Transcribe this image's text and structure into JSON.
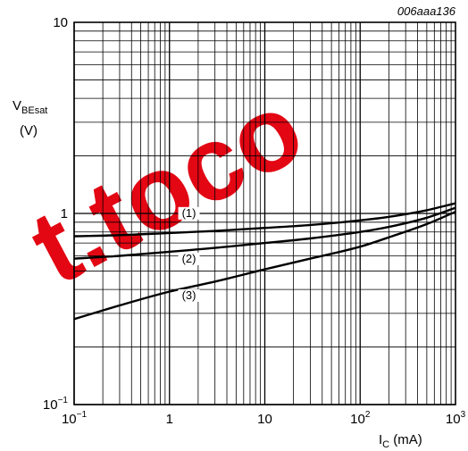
{
  "chart_data": {
    "type": "line",
    "code": "006aaa136",
    "ylabel_main": "V",
    "ylabel_sub": "BEsat",
    "ylabel_unit": "(V)",
    "xlabel_main": "I",
    "xlabel_sub": "C",
    "xlabel_unit": " (mA)",
    "x_scale": "log",
    "y_scale": "log",
    "xlim": [
      0.1,
      1000
    ],
    "ylim": [
      0.1,
      10
    ],
    "grid": true,
    "x_ticks": [
      {
        "value": 0.1,
        "base": "10",
        "exp": "−1"
      },
      {
        "value": 1,
        "base": "1",
        "exp": ""
      },
      {
        "value": 10,
        "base": "10",
        "exp": ""
      },
      {
        "value": 100,
        "base": "10",
        "exp": "2"
      },
      {
        "value": 1000,
        "base": "10",
        "exp": "3"
      }
    ],
    "y_ticks": [
      {
        "value": 0.1,
        "base": "10",
        "exp": "−1"
      },
      {
        "value": 1,
        "base": "1",
        "exp": ""
      },
      {
        "value": 10,
        "base": "10",
        "exp": ""
      }
    ],
    "series": [
      {
        "name": "(1)",
        "x": [
          0.1,
          0.3,
          1,
          3,
          10,
          30,
          100,
          200,
          500,
          1000
        ],
        "values": [
          0.76,
          0.77,
          0.79,
          0.81,
          0.84,
          0.87,
          0.92,
          0.96,
          1.04,
          1.13
        ]
      },
      {
        "name": "(2)",
        "x": [
          0.1,
          0.3,
          1,
          3,
          10,
          30,
          100,
          200,
          500,
          1000
        ],
        "values": [
          0.58,
          0.6,
          0.63,
          0.66,
          0.7,
          0.74,
          0.8,
          0.85,
          0.95,
          1.07
        ]
      },
      {
        "name": "(3)",
        "x": [
          0.1,
          0.3,
          1,
          3,
          10,
          30,
          100,
          200,
          500,
          1000
        ],
        "values": [
          0.28,
          0.33,
          0.39,
          0.44,
          0.51,
          0.58,
          0.67,
          0.75,
          0.88,
          1.02
        ]
      }
    ],
    "label_positions": [
      {
        "x": 1.6,
        "y": 0.97
      },
      {
        "x": 1.6,
        "y": 0.56
      },
      {
        "x": 1.6,
        "y": 0.36
      }
    ]
  },
  "watermark": "t.toco",
  "colors": {
    "line": "#000000",
    "grid": "#000000",
    "watermark": "#e30613"
  }
}
